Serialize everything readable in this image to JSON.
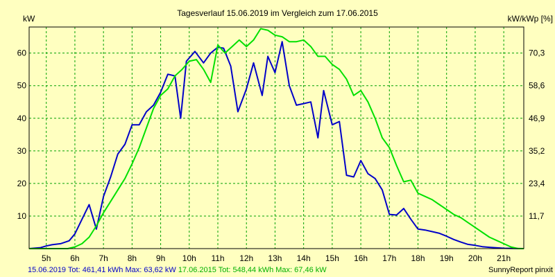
{
  "chart_data": {
    "type": "line",
    "title": "Tagesverlauf 15.06.2019 im Vergleich zum 17.06.2015",
    "ylabel_left": "kW",
    "ylabel_right": "kW/kWp [%]",
    "ylim": [
      0,
      68
    ],
    "y_ticks_left": [
      10,
      20,
      30,
      40,
      50,
      60
    ],
    "y_ticks_right": [
      "11,7",
      "23,4",
      "35,2",
      "46,9",
      "58,6",
      "70,3"
    ],
    "xlim": [
      4.4,
      21.7
    ],
    "x_ticks": [
      {
        "value": 5,
        "label": "5h"
      },
      {
        "value": 6,
        "label": "6h"
      },
      {
        "value": 7,
        "label": "7h"
      },
      {
        "value": 8,
        "label": "8h"
      },
      {
        "value": 9,
        "label": "9h"
      },
      {
        "value": 10,
        "label": "10h"
      },
      {
        "value": 11,
        "label": "11h"
      },
      {
        "value": 12,
        "label": "12h"
      },
      {
        "value": 13,
        "label": "13h"
      },
      {
        "value": 14,
        "label": "14h"
      },
      {
        "value": 15,
        "label": "15h"
      },
      {
        "value": 16,
        "label": "16h"
      },
      {
        "value": 17,
        "label": "17h"
      },
      {
        "value": 18,
        "label": "18h"
      },
      {
        "value": 19,
        "label": "19h"
      },
      {
        "value": 20,
        "label": "20h"
      },
      {
        "value": 21,
        "label": "21h"
      }
    ],
    "grid": true,
    "series": [
      {
        "name": "15.06.2019",
        "color": "#0000c8",
        "points": [
          [
            4.4,
            0
          ],
          [
            4.8,
            0.3
          ],
          [
            5.0,
            0.8
          ],
          [
            5.2,
            1.2
          ],
          [
            5.5,
            1.5
          ],
          [
            5.8,
            2.4
          ],
          [
            6.0,
            4.5
          ],
          [
            6.25,
            9
          ],
          [
            6.5,
            13.5
          ],
          [
            6.75,
            6
          ],
          [
            7.0,
            16
          ],
          [
            7.25,
            22
          ],
          [
            7.5,
            29
          ],
          [
            7.75,
            32
          ],
          [
            8.0,
            38
          ],
          [
            8.25,
            38
          ],
          [
            8.5,
            42
          ],
          [
            8.75,
            44
          ],
          [
            9.0,
            48
          ],
          [
            9.25,
            53.5
          ],
          [
            9.5,
            53
          ],
          [
            9.7,
            40
          ],
          [
            9.9,
            57.5
          ],
          [
            10.2,
            60.5
          ],
          [
            10.5,
            57
          ],
          [
            10.75,
            60
          ],
          [
            11.0,
            61.8
          ],
          [
            11.2,
            61.5
          ],
          [
            11.45,
            56
          ],
          [
            11.7,
            42
          ],
          [
            12.0,
            49
          ],
          [
            12.25,
            57
          ],
          [
            12.55,
            47
          ],
          [
            12.75,
            59
          ],
          [
            13.0,
            54
          ],
          [
            13.25,
            63.5
          ],
          [
            13.5,
            50
          ],
          [
            13.75,
            44
          ],
          [
            14.0,
            44.5
          ],
          [
            14.25,
            45
          ],
          [
            14.5,
            34
          ],
          [
            14.7,
            48.5
          ],
          [
            15.0,
            38
          ],
          [
            15.25,
            39
          ],
          [
            15.5,
            22.5
          ],
          [
            15.75,
            22
          ],
          [
            16.0,
            27
          ],
          [
            16.25,
            23
          ],
          [
            16.5,
            21.5
          ],
          [
            16.75,
            18
          ],
          [
            17.0,
            10.5
          ],
          [
            17.25,
            10.3
          ],
          [
            17.5,
            12.3
          ],
          [
            17.75,
            9
          ],
          [
            18.0,
            6
          ],
          [
            18.25,
            5.7
          ],
          [
            18.5,
            5.2
          ],
          [
            18.75,
            4.7
          ],
          [
            19.0,
            3.8
          ],
          [
            19.25,
            2.8
          ],
          [
            19.5,
            2
          ],
          [
            19.75,
            1.3
          ],
          [
            20.0,
            1
          ],
          [
            20.25,
            0.6
          ],
          [
            20.5,
            0.4
          ],
          [
            21.0,
            0.1
          ],
          [
            21.7,
            0
          ]
        ]
      },
      {
        "name": "17.06.2015",
        "color": "#00e000",
        "points": [
          [
            4.4,
            0
          ],
          [
            5.75,
            0
          ],
          [
            6.0,
            0.5
          ],
          [
            6.25,
            1.5
          ],
          [
            6.5,
            3.5
          ],
          [
            6.75,
            7
          ],
          [
            7.0,
            11
          ],
          [
            7.25,
            14.5
          ],
          [
            7.5,
            18
          ],
          [
            7.75,
            21.5
          ],
          [
            8.0,
            26
          ],
          [
            8.25,
            31
          ],
          [
            8.5,
            37
          ],
          [
            8.75,
            43
          ],
          [
            9.0,
            47
          ],
          [
            9.25,
            49
          ],
          [
            9.5,
            53
          ],
          [
            9.75,
            55
          ],
          [
            10.0,
            57.5
          ],
          [
            10.25,
            58
          ],
          [
            10.5,
            55
          ],
          [
            10.75,
            51
          ],
          [
            11.0,
            62.5
          ],
          [
            11.25,
            60
          ],
          [
            11.5,
            62
          ],
          [
            11.75,
            64
          ],
          [
            12.0,
            62
          ],
          [
            12.25,
            64
          ],
          [
            12.5,
            67.5
          ],
          [
            12.75,
            67
          ],
          [
            13.0,
            65.5
          ],
          [
            13.25,
            65
          ],
          [
            13.5,
            63.5
          ],
          [
            13.75,
            63.5
          ],
          [
            14.0,
            64
          ],
          [
            14.25,
            62
          ],
          [
            14.5,
            59
          ],
          [
            14.75,
            59
          ],
          [
            15.0,
            56.5
          ],
          [
            15.25,
            55
          ],
          [
            15.5,
            52
          ],
          [
            15.75,
            47
          ],
          [
            16.0,
            48.5
          ],
          [
            16.25,
            45
          ],
          [
            16.5,
            40
          ],
          [
            16.75,
            34
          ],
          [
            17.0,
            31
          ],
          [
            17.25,
            25.5
          ],
          [
            17.5,
            20.5
          ],
          [
            17.75,
            21
          ],
          [
            18.0,
            17
          ],
          [
            18.25,
            16
          ],
          [
            18.5,
            15
          ],
          [
            18.75,
            13.5
          ],
          [
            19.0,
            12
          ],
          [
            19.25,
            10.5
          ],
          [
            19.5,
            9.5
          ],
          [
            19.75,
            8
          ],
          [
            20.0,
            6.5
          ],
          [
            20.25,
            5
          ],
          [
            20.5,
            3.5
          ],
          [
            20.75,
            2.5
          ],
          [
            21.0,
            1.5
          ],
          [
            21.25,
            0.5
          ],
          [
            21.5,
            0
          ],
          [
            21.7,
            0
          ]
        ]
      }
    ]
  },
  "footer": {
    "left_a": "15.06.2019 Tot: 461,41 kWh Max: 63,62 kW",
    "left_b": "17.06.2015 Tot: 548,44 kWh Max: 67,46 kW",
    "right": "SunnyReport pinxit"
  }
}
